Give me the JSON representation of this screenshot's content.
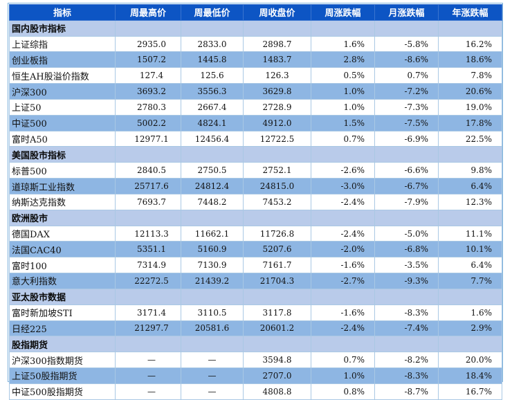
{
  "headers": [
    "指标",
    "周最高价",
    "周最低价",
    "周收盘价",
    "周涨跌幅",
    "月涨跌幅",
    "年涨跌幅"
  ],
  "sections": [
    {
      "title": "国内股市指标",
      "rows": [
        [
          "上证综指",
          "2935.0",
          "2833.0",
          "2898.7",
          "1.6%",
          "-5.8%",
          "16.2%"
        ],
        [
          "创业板指",
          "1507.2",
          "1445.8",
          "1483.7",
          "2.8%",
          "-8.6%",
          "18.6%"
        ],
        [
          "恒生AH股溢价指数",
          "127.4",
          "125.6",
          "126.3",
          "0.5%",
          "0.7%",
          "7.8%"
        ],
        [
          "沪深300",
          "3693.2",
          "3556.3",
          "3629.8",
          "1.0%",
          "-7.2%",
          "20.6%"
        ],
        [
          "上证50",
          "2780.3",
          "2667.4",
          "2728.9",
          "1.0%",
          "-7.3%",
          "19.0%"
        ],
        [
          "中证500",
          "5002.2",
          "4824.1",
          "4912.0",
          "1.5%",
          "-7.5%",
          "17.8%"
        ],
        [
          "富时A50",
          "12977.1",
          "12456.4",
          "12722.5",
          "0.7%",
          "-6.9%",
          "22.5%"
        ]
      ]
    },
    {
      "title": "美国股市指标",
      "rows": [
        [
          "标普500",
          "2840.5",
          "2750.5",
          "2752.1",
          "-2.6%",
          "-6.6%",
          "9.8%"
        ],
        [
          "道琼斯工业指数",
          "25717.6",
          "24812.4",
          "24815.0",
          "-3.0%",
          "-6.7%",
          "6.4%"
        ],
        [
          "纳斯达克指数",
          "7693.7",
          "7448.2",
          "7453.2",
          "-2.4%",
          "-7.9%",
          "12.3%"
        ]
      ]
    },
    {
      "title": "欧洲股市",
      "rows": [
        [
          "德国DAX",
          "12113.3",
          "11662.1",
          "11726.8",
          "-2.4%",
          "-5.0%",
          "11.1%"
        ],
        [
          "法国CAC40",
          "5351.1",
          "5160.9",
          "5207.6",
          "-2.0%",
          "-6.8%",
          "10.1%"
        ],
        [
          "富时100",
          "7314.9",
          "7130.9",
          "7161.7",
          "-1.6%",
          "-3.5%",
          "6.4%"
        ],
        [
          "意大利指数",
          "22272.5",
          "21439.2",
          "21704.3",
          "-2.7%",
          "-9.3%",
          "7.7%"
        ]
      ]
    },
    {
      "title": "亚太股市数据",
      "rows": [
        [
          "富时新加坡STI",
          "3171.4",
          "3110.5",
          "3117.8",
          "-1.6%",
          "-8.3%",
          "1.6%"
        ],
        [
          "日经225",
          "21297.7",
          "20581.6",
          "20601.2",
          "-2.4%",
          "-7.4%",
          "2.9%"
        ]
      ]
    },
    {
      "title": "股指期货",
      "rows": [
        [
          "沪深300指数期货",
          "—",
          "—",
          "3594.8",
          "0.7%",
          "-8.2%",
          "20.0%"
        ],
        [
          "上证50股指期货",
          "—",
          "—",
          "2707.0",
          "1.0%",
          "-8.3%",
          "18.4%"
        ],
        [
          "中证500股指期货",
          "—",
          "—",
          "4808.8",
          "0.8%",
          "-8.7%",
          "16.7%"
        ]
      ]
    }
  ]
}
